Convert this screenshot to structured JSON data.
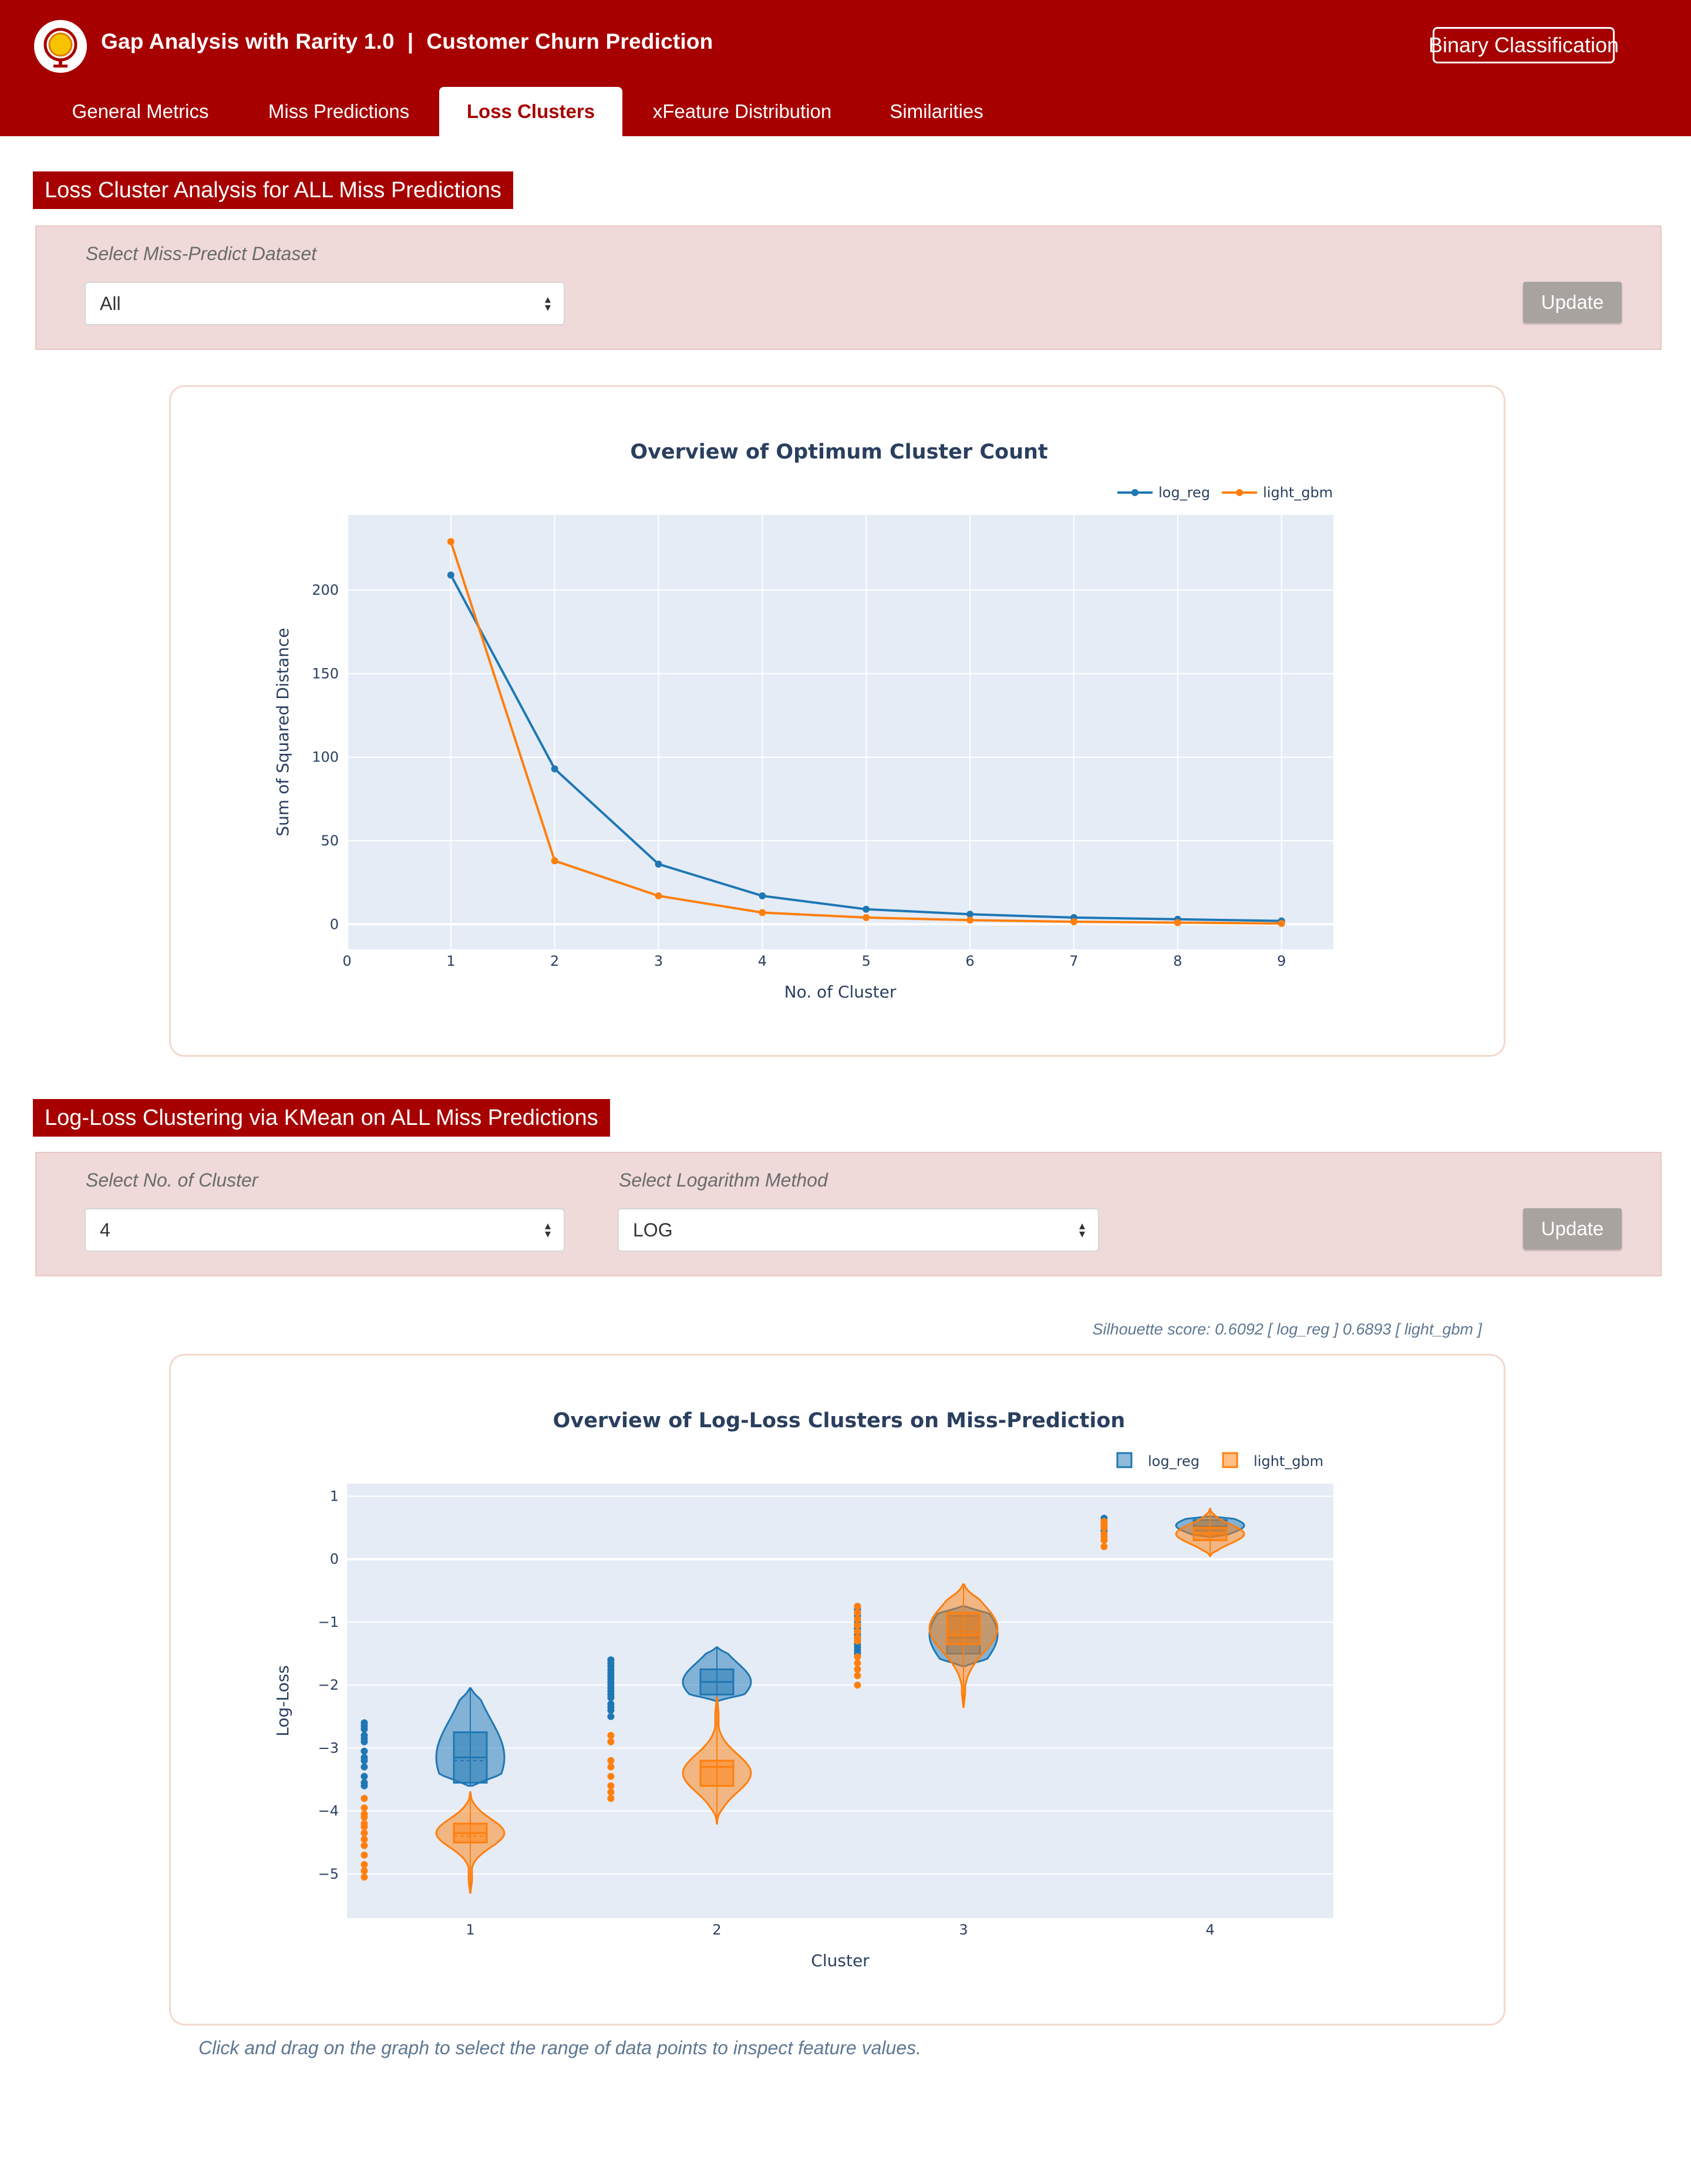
{
  "header": {
    "app_name": "Gap Analysis with Rarity 1.0",
    "separator": "|",
    "project": "Customer Churn Prediction",
    "task_badge": "Binary Classification",
    "tabs": [
      {
        "label": "General Metrics",
        "active": false
      },
      {
        "label": "Miss Predictions",
        "active": false
      },
      {
        "label": "Loss Clusters",
        "active": true
      },
      {
        "label": "xFeature Distribution",
        "active": false
      },
      {
        "label": "Similarities",
        "active": false
      }
    ]
  },
  "section1": {
    "title": "Loss Cluster Analysis for ALL Miss Predictions",
    "dataset_label": "Select Miss-Predict Dataset",
    "dataset_value": "All",
    "update_label": "Update"
  },
  "section2": {
    "title": "Log-Loss Clustering via KMean on ALL Miss Predictions",
    "cluster_label": "Select No. of Cluster",
    "cluster_value": "4",
    "log_label": "Select Logarithm Method",
    "log_value": "LOG",
    "update_label": "Update",
    "silhouette": "Silhouette score: 0.6092 [ log_reg ] 0.6893 [ light_gbm ]",
    "hint": "Click and drag on the graph to select the range of data points to inspect feature values."
  },
  "colors": {
    "brand": "#a70000",
    "log_reg": "#1f77b4",
    "light_gbm": "#ff7f0e",
    "plot_bg": "#e5ecf6",
    "panel_bg": "#efd9d9",
    "button_disabled": "#a8a39f"
  },
  "icons": {
    "logo": "globe-logo-icon",
    "select_caret": "select-caret-icon"
  },
  "chart_data": [
    {
      "type": "line",
      "title": "Overview of Optimum Cluster Count",
      "xlabel": "No. of Cluster",
      "ylabel": "Sum of Squared Distance",
      "x": [
        1,
        2,
        3,
        4,
        5,
        6,
        7,
        8,
        9
      ],
      "xlim": [
        0,
        9.5
      ],
      "ylim": [
        -15,
        245
      ],
      "xticks": [
        "0",
        "1",
        "2",
        "3",
        "4",
        "5",
        "6",
        "7",
        "8",
        "9"
      ],
      "yticks": [
        "0",
        "50",
        "100",
        "150",
        "200"
      ],
      "legend_position": "top-right",
      "grid": true,
      "series": [
        {
          "name": "log_reg",
          "values": [
            209,
            93,
            36,
            17,
            9,
            6,
            4,
            3,
            2
          ]
        },
        {
          "name": "light_gbm",
          "values": [
            229,
            38,
            17,
            7,
            4,
            2.5,
            1.5,
            1,
            0.5
          ]
        }
      ]
    },
    {
      "type": "violin",
      "title": "Overview of Log-Loss Clusters on Miss-Prediction",
      "xlabel": "Cluster",
      "ylabel": "Log-Loss",
      "categories": [
        "1",
        "2",
        "3",
        "4"
      ],
      "ylim": [
        -5.7,
        1.2
      ],
      "yticks": [
        "1",
        "0",
        "−1",
        "−2",
        "−3",
        "−4",
        "−5"
      ],
      "legend_position": "top-right",
      "grid": true,
      "series": [
        {
          "name": "log_reg",
          "violins": [
            {
              "min": -3.6,
              "q1": -3.55,
              "median": -3.15,
              "mean": -3.2,
              "q3": -2.75,
              "max": -2.05
            },
            {
              "min": -2.25,
              "q1": -2.15,
              "median": -1.95,
              "mean": -1.95,
              "q3": -1.75,
              "max": -1.4
            },
            {
              "min": -1.7,
              "q1": -1.5,
              "median": -1.25,
              "mean": -1.2,
              "q3": -0.9,
              "max": -0.75
            },
            {
              "min": 0.35,
              "q1": 0.45,
              "median": 0.52,
              "mean": 0.52,
              "q3": 0.62,
              "max": 0.68
            }
          ],
          "points": [
            [
              -2.6,
              -2.65,
              -2.7,
              -2.8,
              -2.85,
              -2.9,
              -3.05,
              -3.15,
              -3.2,
              -3.3,
              -3.45,
              -3.55,
              -3.6
            ],
            [
              -1.6,
              -1.65,
              -1.7,
              -1.75,
              -1.8,
              -1.85,
              -1.9,
              -1.95,
              -2.0,
              -2.05,
              -2.1,
              -2.15,
              -2.2,
              -2.3,
              -2.35,
              -2.4,
              -2.5
            ],
            [
              -0.75,
              -0.8,
              -0.9,
              -1.0,
              -1.05,
              -1.1,
              -1.15,
              -1.2,
              -1.25,
              -1.3,
              -1.35,
              -1.4,
              -1.45,
              -1.5
            ],
            [
              0.45,
              0.5,
              0.55,
              0.6,
              0.65
            ]
          ]
        },
        {
          "name": "light_gbm",
          "violins": [
            {
              "min": -5.3,
              "q1": -4.5,
              "median": -4.35,
              "mean": -4.4,
              "q3": -4.2,
              "max": -3.7
            },
            {
              "min": -4.2,
              "q1": -3.6,
              "median": -3.3,
              "mean": -3.3,
              "q3": -3.2,
              "max": -2.2
            },
            {
              "min": -2.35,
              "q1": -1.35,
              "median": -1.2,
              "mean": -1.15,
              "q3": -0.85,
              "max": -0.4
            },
            {
              "min": 0.05,
              "q1": 0.3,
              "median": 0.4,
              "mean": 0.4,
              "q3": 0.5,
              "max": 0.8
            }
          ],
          "points": [
            [
              -3.8,
              -3.95,
              -4.05,
              -4.1,
              -4.2,
              -4.25,
              -4.35,
              -4.45,
              -4.55,
              -4.7,
              -4.85,
              -4.95,
              -5.05
            ],
            [
              -2.8,
              -2.9,
              -3.2,
              -3.3,
              -3.45,
              -3.6,
              -3.7,
              -3.8
            ],
            [
              -0.75,
              -0.85,
              -0.95,
              -1.05,
              -1.15,
              -1.25,
              -1.3,
              -1.55,
              -1.65,
              -1.75,
              -1.85,
              -2.0
            ],
            [
              0.2,
              0.3,
              0.35,
              0.4,
              0.5,
              0.55,
              0.6
            ]
          ]
        }
      ]
    }
  ]
}
